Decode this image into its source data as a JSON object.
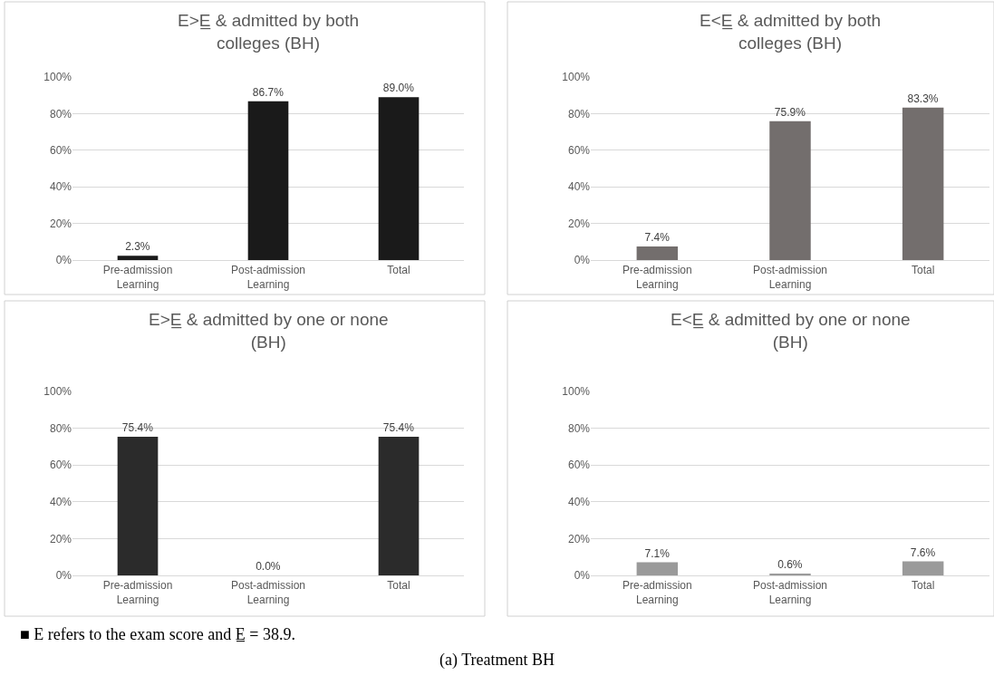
{
  "chart_data": [
    {
      "type": "bar",
      "title": "E>E̲ & admitted by both colleges (BH)",
      "categories": [
        "Pre-admission Learning",
        "Post-admission Learning",
        "Total"
      ],
      "values": [
        2.3,
        86.7,
        89.0
      ],
      "value_labels": [
        "2.3%",
        "86.7%",
        "89.0%"
      ],
      "color": "#1a1a1a",
      "ylim": [
        0,
        100
      ],
      "yticks": [
        {
          "value": 0,
          "label": "0%"
        },
        {
          "value": 20,
          "label": "20%"
        },
        {
          "value": 40,
          "label": "40%"
        },
        {
          "value": 60,
          "label": "60%"
        },
        {
          "value": 80,
          "label": "80%"
        },
        {
          "value": 100,
          "label": "100%"
        }
      ],
      "grid": "y"
    },
    {
      "type": "bar",
      "title": "E<E̲ & admitted by both colleges (BH)",
      "categories": [
        "Pre-admission Learning",
        "Post-admission Learning",
        "Total"
      ],
      "values": [
        7.4,
        75.9,
        83.3
      ],
      "value_labels": [
        "7.4%",
        "75.9%",
        "83.3%"
      ],
      "color": "#736e6d",
      "ylim": [
        0,
        100
      ],
      "yticks": [
        {
          "value": 0,
          "label": "0%"
        },
        {
          "value": 20,
          "label": "20%"
        },
        {
          "value": 40,
          "label": "40%"
        },
        {
          "value": 60,
          "label": "60%"
        },
        {
          "value": 80,
          "label": "80%"
        },
        {
          "value": 100,
          "label": "100%"
        }
      ],
      "grid": "y"
    },
    {
      "type": "bar",
      "title": "E>E̲ & admitted by one or none (BH)",
      "categories": [
        "Pre-admission Learning",
        "Post-admission Learning",
        "Total"
      ],
      "values": [
        75.4,
        0.0,
        75.4
      ],
      "value_labels": [
        "75.4%",
        "0.0%",
        "75.4%"
      ],
      "color": "#2b2b2b",
      "ylim": [
        0,
        100
      ],
      "yticks": [
        {
          "value": 0,
          "label": "0%"
        },
        {
          "value": 20,
          "label": "20%"
        },
        {
          "value": 40,
          "label": "40%"
        },
        {
          "value": 60,
          "label": "60%"
        },
        {
          "value": 80,
          "label": "80%"
        },
        {
          "value": 100,
          "label": "100%"
        }
      ],
      "grid": "y"
    },
    {
      "type": "bar",
      "title": "E<E̲ & admitted by one or none (BH)",
      "categories": [
        "Pre-admission Learning",
        "Post-admission Learning",
        "Total"
      ],
      "values": [
        7.1,
        0.6,
        7.6
      ],
      "value_labels": [
        "7.1%",
        "0.6%",
        "7.6%"
      ],
      "color": "#9a9a9a",
      "ylim": [
        0,
        100
      ],
      "yticks": [
        {
          "value": 0,
          "label": "0%"
        },
        {
          "value": 20,
          "label": "20%"
        },
        {
          "value": 40,
          "label": "40%"
        },
        {
          "value": 60,
          "label": "60%"
        },
        {
          "value": 80,
          "label": "80%"
        },
        {
          "value": 100,
          "label": "100%"
        }
      ],
      "grid": "y",
      "annotations": [
        "■ E refers to the exam score and E̲ = 38.9.",
        "(a) Treatment BH"
      ]
    }
  ]
}
